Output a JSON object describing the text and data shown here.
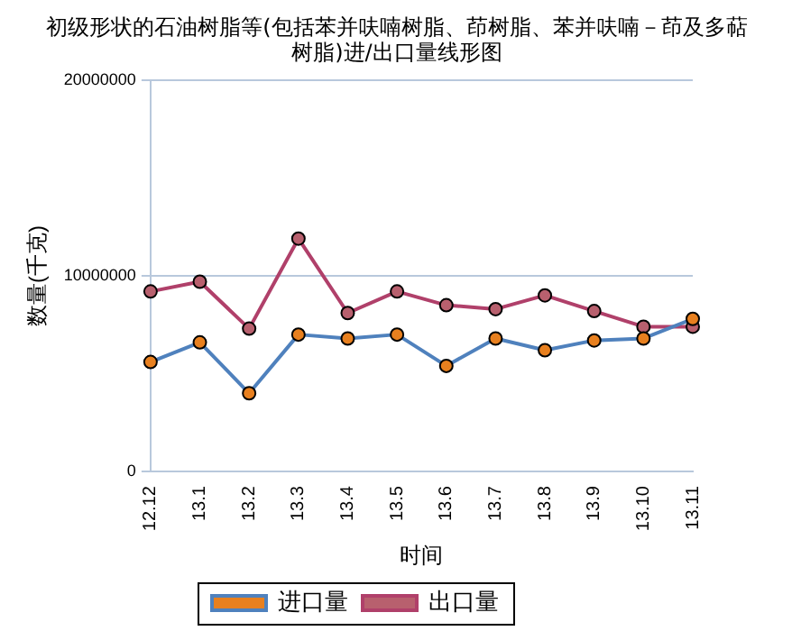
{
  "chart_data": {
    "type": "line",
    "title": "初级形状的石油树脂等(包括苯并呋喃树脂、茚树脂、苯并呋喃－茚及多萜树脂)进/出口量线形图",
    "xlabel": "时间",
    "ylabel": "数量(千克)",
    "categories": [
      "12.12",
      "13.1",
      "13.2",
      "13.3",
      "13.4",
      "13.5",
      "13.6",
      "13.7",
      "13.8",
      "13.9",
      "13.10",
      "13.11"
    ],
    "series": [
      {
        "name": "进口量",
        "color": "#4f81bd",
        "colors": [
          "#e8801f",
          "#e8801f",
          "#e8801f",
          "#e8801f",
          "#e8801f",
          "#e8801f",
          "#e8801f",
          "#e8801f",
          "#e8801f",
          "#e8801f",
          "#e8801f",
          "#e8801f"
        ],
        "values": [
          5600000,
          6600000,
          4000000,
          7000000,
          6800000,
          7000000,
          5400000,
          6800000,
          6200000,
          6700000,
          6800000,
          7800000
        ]
      },
      {
        "name": "出口量",
        "color": "#b0406a",
        "colors": [
          "#b8606e",
          "#b8606e",
          "#b8606e",
          "#b8606e",
          "#b8606e",
          "#b8606e",
          "#b8606e",
          "#b8606e",
          "#b8606e",
          "#b8606e",
          "#b8606e",
          "#b8606e"
        ],
        "values": [
          9200000,
          9700000,
          7300000,
          11900000,
          8100000,
          9200000,
          8500000,
          8300000,
          9000000,
          8200000,
          7400000,
          7400000
        ]
      }
    ],
    "ylim": [
      0,
      20000000
    ],
    "yticks": [
      0,
      10000000,
      20000000
    ],
    "grid": "y",
    "legend": "bottom",
    "marker": "circle",
    "line_style": "solid"
  }
}
